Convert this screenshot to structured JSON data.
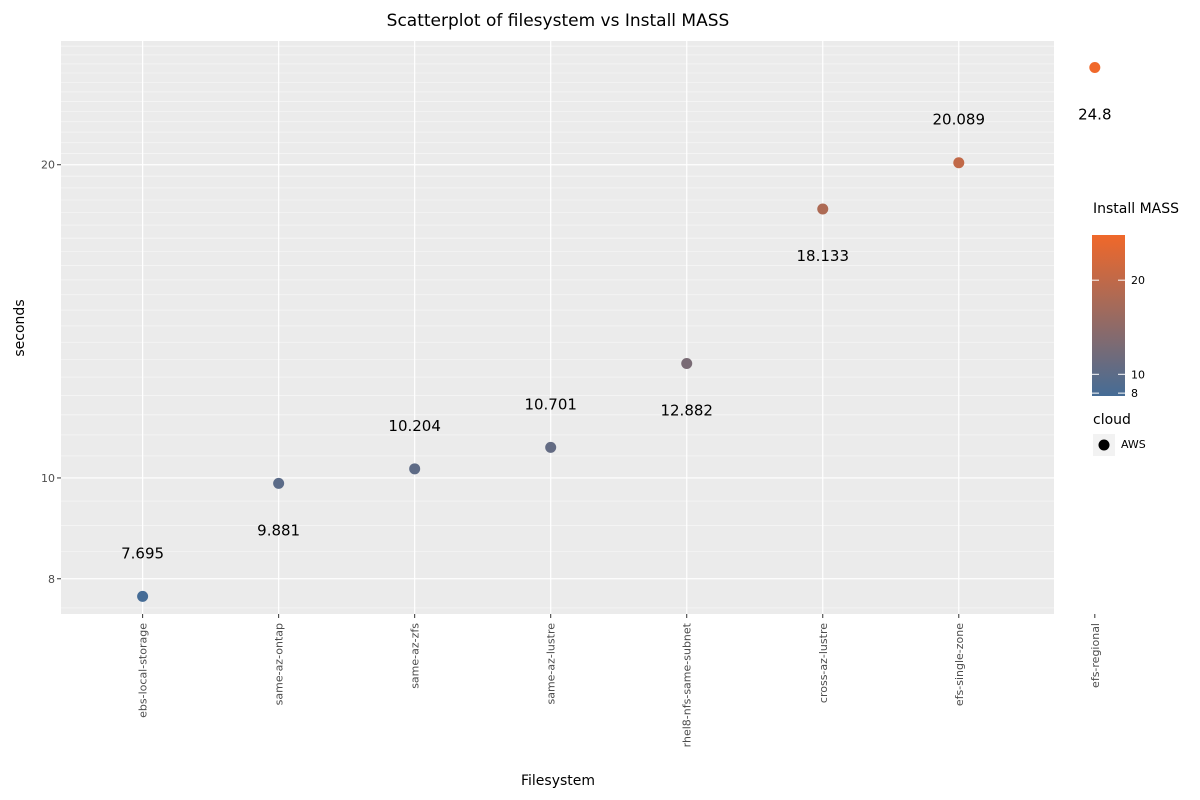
{
  "chart_data": {
    "type": "scatter",
    "title": "Scatterplot of filesystem vs Install MASS",
    "xlabel": "Filesystem",
    "ylabel": "seconds",
    "y_scale": "log",
    "ylim": [
      7.4,
      26.3
    ],
    "y_ticks": [
      8,
      10,
      20
    ],
    "grid": true,
    "categories": [
      "ebs-local-storage",
      "same-az-ontap",
      "same-az-zfs",
      "same-az-lustre",
      "rhel8-nfs-same-subnet",
      "cross-az-lustre",
      "efs-single-zone",
      "efs-regional"
    ],
    "values": [
      7.695,
      9.881,
      10.204,
      10.701,
      12.882,
      18.133,
      20.089,
      24.8
    ],
    "data_labels": [
      "7.695",
      "9.881",
      "10.204",
      "10.701",
      "12.882",
      "18.133",
      "20.089",
      "24.8"
    ],
    "label_above": [
      true,
      false,
      true,
      true,
      false,
      false,
      true,
      false
    ],
    "color_scale": {
      "title": "Install MASS",
      "low_color": "#456c96",
      "high_color": "#f0682a",
      "range": [
        7.695,
        24.8
      ],
      "ticks": [
        8,
        10,
        20
      ]
    },
    "shape_legend": {
      "title": "cloud",
      "entries": [
        "AWS"
      ]
    },
    "legend_position": "right"
  }
}
